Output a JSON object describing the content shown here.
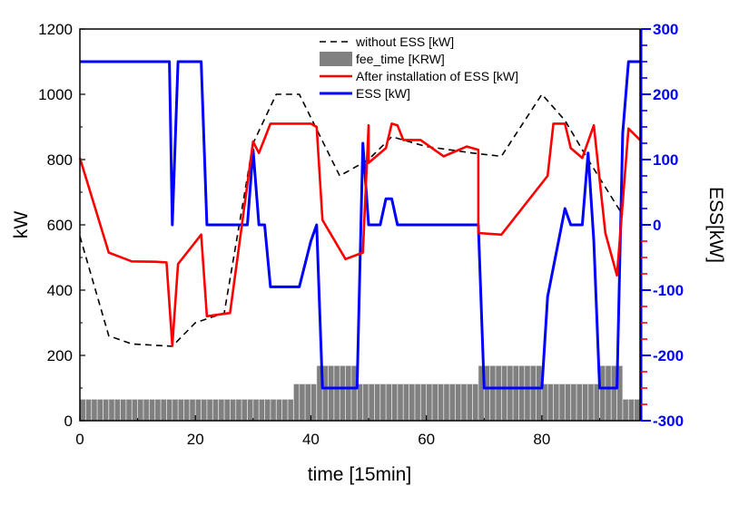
{
  "chart_data": {
    "type": "line",
    "xlabel": "time [15min]",
    "ylabel": "kW",
    "y2label": "ESS[kW]",
    "xlim": [
      0,
      97
    ],
    "ylim": [
      0,
      1200
    ],
    "y2lim": [
      -300,
      300
    ],
    "x_ticks": [
      0,
      20,
      40,
      60,
      80
    ],
    "y_ticks": [
      0,
      200,
      400,
      600,
      800,
      1000,
      1200
    ],
    "y2_ticks": [
      -300,
      -200,
      -100,
      0,
      100,
      200,
      300
    ],
    "colors": {
      "without_ess": "#000000",
      "fee": "#808080",
      "after": "#ff0000",
      "ess": "#0000ff"
    },
    "legend": {
      "position": "top-center",
      "entries": [
        "without ESS [kW]",
        "fee_time [KRW]",
        "After installation of ESS [kW]",
        "ESS [kW]"
      ]
    },
    "series": [
      {
        "name": "without ESS [kW]",
        "axis": "left",
        "style": "dashed",
        "points": [
          [
            0,
            565
          ],
          [
            5,
            260
          ],
          [
            9,
            235
          ],
          [
            16,
            228
          ],
          [
            20,
            300
          ],
          [
            25,
            330
          ],
          [
            30,
            850
          ],
          [
            34,
            1000
          ],
          [
            38,
            1000
          ],
          [
            45,
            750
          ],
          [
            50,
            800
          ],
          [
            54,
            870
          ],
          [
            60,
            840
          ],
          [
            68,
            820
          ],
          [
            73,
            810
          ],
          [
            80,
            1000
          ],
          [
            84,
            920
          ],
          [
            88,
            800
          ],
          [
            94,
            630
          ]
        ]
      },
      {
        "name": "fee_time [KRW]",
        "axis": "left",
        "style": "bar",
        "segments": [
          [
            0,
            37,
            65
          ],
          [
            37,
            41,
            112
          ],
          [
            41,
            48,
            168
          ],
          [
            48,
            69,
            112
          ],
          [
            69,
            80,
            168
          ],
          [
            80,
            90,
            112
          ],
          [
            90,
            94,
            168
          ],
          [
            94,
            97,
            65
          ]
        ]
      },
      {
        "name": "After installation of ESS [kW]",
        "axis": "left",
        "style": "solid",
        "points": [
          [
            0,
            805
          ],
          [
            5,
            515
          ],
          [
            9,
            488
          ],
          [
            13,
            487
          ],
          [
            15,
            485
          ],
          [
            16,
            230
          ],
          [
            17,
            480
          ],
          [
            21,
            570
          ],
          [
            22,
            320
          ],
          [
            26,
            330
          ],
          [
            30,
            855
          ],
          [
            31,
            820
          ],
          [
            33,
            910
          ],
          [
            40,
            910
          ],
          [
            41,
            900
          ],
          [
            42,
            615
          ],
          [
            46,
            495
          ],
          [
            49,
            515
          ],
          [
            50,
            905
          ],
          [
            50,
            790
          ],
          [
            53,
            835
          ],
          [
            54,
            910
          ],
          [
            55,
            905
          ],
          [
            56,
            860
          ],
          [
            59,
            860
          ],
          [
            63,
            810
          ],
          [
            67,
            840
          ],
          [
            69,
            830
          ],
          [
            69,
            575
          ],
          [
            73,
            570
          ],
          [
            81,
            750
          ],
          [
            82,
            910
          ],
          [
            84,
            910
          ],
          [
            85,
            835
          ],
          [
            87,
            805
          ],
          [
            89,
            905
          ],
          [
            91,
            575
          ],
          [
            93,
            445
          ],
          [
            95,
            895
          ],
          [
            97,
            860
          ]
        ]
      },
      {
        "name": "ESS [kW]",
        "axis": "right",
        "style": "solid",
        "points": [
          [
            0,
            250
          ],
          [
            15.5,
            250
          ],
          [
            16,
            0
          ],
          [
            17,
            250
          ],
          [
            21,
            250
          ],
          [
            22,
            0
          ],
          [
            29,
            0
          ],
          [
            30,
            115
          ],
          [
            31,
            0
          ],
          [
            32,
            0
          ],
          [
            33,
            -95
          ],
          [
            38,
            -95
          ],
          [
            40,
            -25
          ],
          [
            41,
            0
          ],
          [
            42,
            -250
          ],
          [
            48,
            -250
          ],
          [
            49,
            125
          ],
          [
            50,
            0
          ],
          [
            52,
            0
          ],
          [
            53,
            40
          ],
          [
            54,
            40
          ],
          [
            55,
            0
          ],
          [
            69,
            0
          ],
          [
            70,
            -250
          ],
          [
            80,
            -250
          ],
          [
            81,
            -110
          ],
          [
            84,
            25
          ],
          [
            85,
            0
          ],
          [
            87,
            0
          ],
          [
            88,
            110
          ],
          [
            89,
            -25
          ],
          [
            90,
            -250
          ],
          [
            93,
            -250
          ],
          [
            94,
            140
          ],
          [
            95,
            250
          ],
          [
            97,
            250
          ]
        ]
      }
    ]
  }
}
